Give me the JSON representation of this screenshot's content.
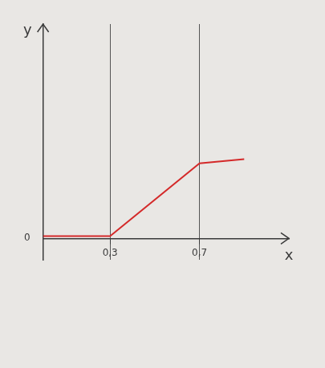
{
  "chart_data": {
    "type": "line",
    "x_label": "x",
    "y_label": "y",
    "x": [
      0,
      0.3,
      0.7,
      0.9
    ],
    "values": [
      0.01,
      0.01,
      0.35,
      0.37
    ],
    "color": "#d42a2a",
    "xlim": [
      0,
      1.1
    ],
    "ylim": [
      -0.1,
      1
    ],
    "xticks": [
      {
        "value": 0.3,
        "label": "0,3"
      },
      {
        "value": 0.7,
        "label": "0,7"
      }
    ],
    "yticks": [
      0
    ],
    "grid": true
  }
}
